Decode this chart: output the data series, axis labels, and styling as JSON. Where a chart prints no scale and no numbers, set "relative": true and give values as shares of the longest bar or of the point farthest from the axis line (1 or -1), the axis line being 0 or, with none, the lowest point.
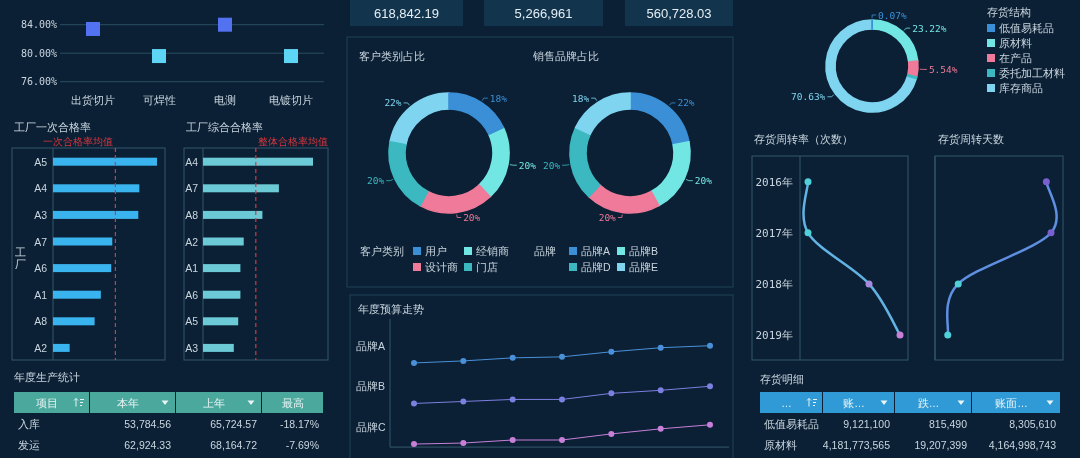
{
  "chart_data": [
    {
      "type": "scatter",
      "categories": [
        "出货切片",
        "可焊性",
        "电测",
        "电镀切片"
      ],
      "values": [
        83.4,
        79.6,
        84,
        79.6
      ],
      "colors": [
        "#5272f2",
        "#5cd6f4",
        "#5272f2",
        "#5cd6f4"
      ],
      "ylim": [
        76,
        84
      ],
      "yticks": [
        {
          "value": 76,
          "label": "76.00%"
        },
        {
          "value": 80,
          "label": "80.00%"
        },
        {
          "value": 84,
          "label": "84.00%"
        }
      ],
      "grid": "y",
      "marker": "square"
    },
    {
      "type": "other",
      "annotations": [
        "618,842.19",
        "5,266,961",
        "560,728.03"
      ]
    },
    {
      "type": "donut",
      "legend_title": "存货结构",
      "categories": [
        "低值易耗品",
        "原材料",
        "在产品",
        "委托加工材料",
        "库存商品"
      ],
      "values": [
        0.07,
        23.22,
        5.54,
        0.54,
        70.63
      ],
      "colors": [
        "#3a8fd6",
        "#72e6e3",
        "#f07a9a",
        "#3bb8c0",
        "#7fd4f0"
      ],
      "value_labels": [
        "0.07%",
        "23.22%",
        "5.54%",
        null,
        "70.63%"
      ],
      "legend": "right"
    },
    {
      "type": "bar",
      "orientation": "horizontal",
      "relative": true,
      "title": "工厂一次合格率",
      "ylabel": "工厂",
      "categories": [
        "A5",
        "A4",
        "A3",
        "A7",
        "A6",
        "A1",
        "A8",
        "A2"
      ],
      "values": [
        1,
        0.83,
        0.82,
        0.57,
        0.56,
        0.46,
        0.4,
        0.16
      ],
      "color": "#3ab4ee",
      "ref_lines": [
        {
          "axis": "x",
          "value": 0.6,
          "label": "一次合格率均值",
          "color": "#d9363e",
          "line_style": "dashed"
        }
      ]
    },
    {
      "type": "bar",
      "orientation": "horizontal",
      "relative": true,
      "title": "工厂综合合格率",
      "categories": [
        "A4",
        "A7",
        "A8",
        "A2",
        "A1",
        "A6",
        "A5",
        "A3"
      ],
      "values": [
        1,
        0.69,
        0.54,
        0.37,
        0.34,
        0.34,
        0.32,
        0.28
      ],
      "color": "#6ccad6",
      "ref_lines": [
        {
          "axis": "x",
          "value": 0.48,
          "label": "整体合格率均值",
          "color": "#d9363e",
          "line_style": "dashed"
        }
      ]
    },
    {
      "type": "donut",
      "title": "客户类别占比",
      "legend_title": "客户类别",
      "categories": [
        "用户",
        "经销商",
        "设计商",
        "门店",
        null
      ],
      "values": [
        18,
        20,
        20,
        20,
        22
      ],
      "colors": [
        "#3a8fd6",
        "#72e6e3",
        "#f07a9a",
        "#3bb8c0",
        "#7fd4f0"
      ],
      "value_labels": [
        "18%",
        "20%",
        "20%",
        "20%",
        "22%"
      ],
      "legend": "bottom"
    },
    {
      "type": "donut",
      "title": "销售品牌占比",
      "legend_title": "品牌",
      "categories": [
        "品牌A",
        "品牌B",
        null,
        "品牌D",
        "品牌E"
      ],
      "values": [
        22,
        20,
        20,
        20,
        18
      ],
      "colors": [
        "#3a8fd6",
        "#72e6e3",
        "#f07a9a",
        "#3bb8c0",
        "#7fd4f0"
      ],
      "value_labels": [
        "22%",
        "20%",
        "20%",
        "20%",
        "18%"
      ],
      "legend": "bottom"
    },
    {
      "type": "line",
      "title": "年度预算走势",
      "relative": true,
      "categories": [
        null,
        null,
        null,
        null,
        null,
        null,
        null
      ],
      "series": [
        {
          "name": "品牌A",
          "color": "#4a90d9",
          "values": [
            0.83,
            0.85,
            0.88,
            0.89,
            0.94,
            0.98,
            1
          ]
        },
        {
          "name": "品牌B",
          "color": "#7b7fe0",
          "values": [
            0.43,
            0.45,
            0.47,
            0.47,
            0.53,
            0.56,
            0.6
          ]
        },
        {
          "name": "品牌C",
          "color": "#c77fd8",
          "values": [
            0.03,
            0.04,
            0.07,
            0.07,
            0.13,
            0.18,
            0.22
          ]
        }
      ],
      "marker": "circle"
    },
    {
      "type": "line",
      "orientation": "horizontal",
      "relative": true,
      "title": "存货周转率（次数）",
      "categories": [
        "2016年",
        "2017年",
        "2018年",
        "2019年"
      ],
      "values": [
        0.08,
        0.08,
        0.69,
        1
      ],
      "color": "#62b2e4",
      "colors": [
        "#4fd1d9",
        "#4fd1d9",
        "#a58be0",
        "#c77fd8"
      ],
      "marker": "circle"
    },
    {
      "type": "line",
      "orientation": "horizontal",
      "relative": true,
      "title": "存货周转天数",
      "categories": [
        null,
        null,
        null,
        null
      ],
      "values": [
        0.96,
        1,
        0.2,
        0.11
      ],
      "color": "#5f8fe0",
      "colors": [
        "#7a5fd0",
        "#7a5fd0",
        "#4fd1d9",
        "#4fd1d9"
      ],
      "marker": "circle"
    },
    {
      "type": "other",
      "title": "年度生产统计",
      "color": "#4aa89c",
      "categories": [
        "项目",
        "本年",
        "上年",
        "最高"
      ],
      "y_categories": [
        "入库",
        "发运"
      ],
      "cell_labels": [
        [
          "53,784.56",
          "65,724.57",
          "-18.17%"
        ],
        [
          "62,924.33",
          "68,164.72",
          "-7.69%"
        ]
      ]
    },
    {
      "type": "other",
      "title": "存货明细",
      "color": "#2f9ad6",
      "categories": [
        "…",
        "账…",
        "跌…",
        "账面…"
      ],
      "y_categories": [
        "低值易耗品",
        "原材料"
      ],
      "cell_labels": [
        [
          "9,121,100",
          "815,490",
          "8,305,610"
        ],
        [
          "4,181,773,565",
          "19,207,399",
          "4,164,998,743"
        ]
      ]
    }
  ]
}
